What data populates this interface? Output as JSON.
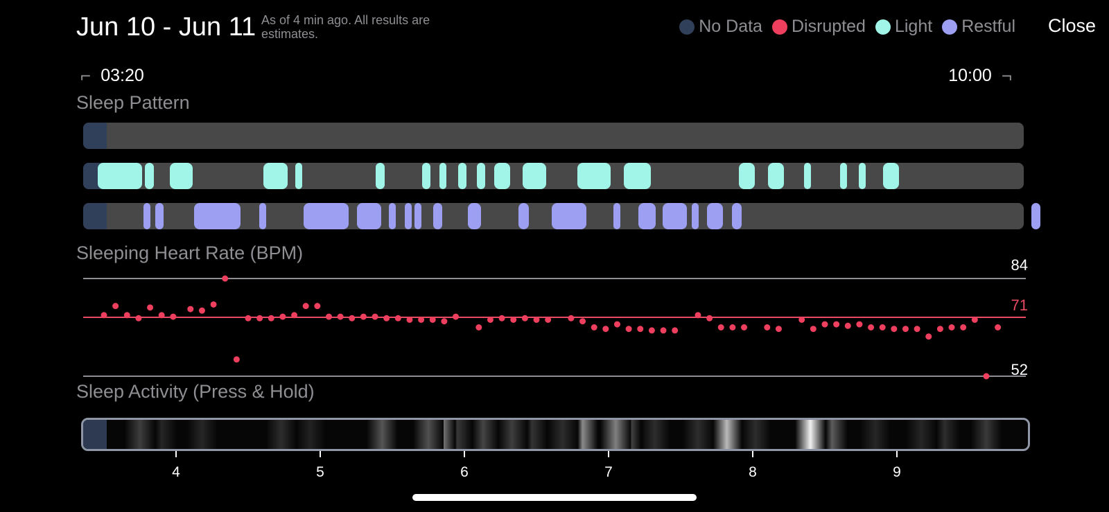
{
  "header": {
    "title": "Jun 10 - Jun 11",
    "subtitle": "As of 4 min ago. All results are estimates.",
    "close_label": "Close"
  },
  "legend": [
    {
      "label": "No Data",
      "color": "#31405a"
    },
    {
      "label": "Disrupted",
      "color": "#ef3f5f"
    },
    {
      "label": "Light",
      "color": "#a0f5e8"
    },
    {
      "label": "Restful",
      "color": "#9da0f2"
    }
  ],
  "time_range": {
    "start": "03:20",
    "end": "10:00"
  },
  "sleep_pattern": {
    "title": "Sleep Pattern",
    "range_hours": [
      3.333,
      10.0
    ],
    "nodata_until": 3.45,
    "light_segments": [
      [
        3.45,
        3.77
      ],
      [
        3.78,
        3.85
      ],
      [
        3.95,
        4.12
      ],
      [
        4.6,
        4.78
      ],
      [
        4.82,
        4.88
      ],
      [
        5.38,
        5.45
      ],
      [
        5.7,
        5.77
      ],
      [
        5.82,
        5.88
      ],
      [
        5.95,
        6.02
      ],
      [
        6.08,
        6.15
      ],
      [
        6.2,
        6.32
      ],
      [
        6.4,
        6.57
      ],
      [
        6.78,
        7.02
      ],
      [
        7.1,
        7.3
      ],
      [
        7.9,
        8.02
      ],
      [
        8.1,
        8.22
      ],
      [
        8.35,
        8.4
      ],
      [
        8.6,
        8.66
      ],
      [
        8.73,
        8.78
      ],
      [
        8.9,
        9.02
      ]
    ],
    "restful_segments": [
      [
        3.77,
        3.82
      ],
      [
        3.85,
        3.92
      ],
      [
        4.12,
        4.45
      ],
      [
        4.57,
        4.62
      ],
      [
        4.88,
        5.2
      ],
      [
        5.25,
        5.43
      ],
      [
        5.47,
        5.53
      ],
      [
        5.58,
        5.62
      ],
      [
        5.65,
        5.7
      ],
      [
        5.78,
        5.85
      ],
      [
        6.02,
        6.12
      ],
      [
        6.37,
        6.45
      ],
      [
        6.6,
        6.85
      ],
      [
        7.03,
        7.07
      ],
      [
        7.2,
        7.33
      ],
      [
        7.37,
        7.55
      ],
      [
        7.57,
        7.63
      ],
      [
        7.68,
        7.8
      ],
      [
        7.85,
        7.93
      ],
      [
        9.93,
        10.0
      ]
    ]
  },
  "heart_rate": {
    "title": "Sleeping Heart Rate (BPM)",
    "max": 84,
    "avg": 71,
    "min": 52,
    "max_label": "84",
    "avg_label": "71",
    "min_label": "52",
    "points": [
      [
        3.5,
        72
      ],
      [
        3.58,
        75
      ],
      [
        3.66,
        72
      ],
      [
        3.74,
        71
      ],
      [
        3.82,
        74.5
      ],
      [
        3.9,
        72
      ],
      [
        3.98,
        71.5
      ],
      [
        4.1,
        74
      ],
      [
        4.18,
        73.5
      ],
      [
        4.26,
        75.5
      ],
      [
        4.34,
        84
      ],
      [
        4.42,
        57.5
      ],
      [
        4.5,
        71
      ],
      [
        4.58,
        71
      ],
      [
        4.66,
        71
      ],
      [
        4.74,
        71.5
      ],
      [
        4.82,
        72
      ],
      [
        4.9,
        75
      ],
      [
        4.98,
        75
      ],
      [
        5.06,
        71.5
      ],
      [
        5.14,
        71.5
      ],
      [
        5.22,
        71
      ],
      [
        5.3,
        71.5
      ],
      [
        5.38,
        71.5
      ],
      [
        5.46,
        71
      ],
      [
        5.54,
        71
      ],
      [
        5.62,
        70.5
      ],
      [
        5.7,
        70.5
      ],
      [
        5.78,
        70.5
      ],
      [
        5.86,
        70
      ],
      [
        5.94,
        71.5
      ],
      [
        6.1,
        68
      ],
      [
        6.18,
        70.5
      ],
      [
        6.26,
        71
      ],
      [
        6.34,
        70.5
      ],
      [
        6.42,
        71
      ],
      [
        6.5,
        70.5
      ],
      [
        6.58,
        70.5
      ],
      [
        6.74,
        71
      ],
      [
        6.82,
        70
      ],
      [
        6.9,
        68
      ],
      [
        6.98,
        67.5
      ],
      [
        7.06,
        69
      ],
      [
        7.14,
        67.5
      ],
      [
        7.22,
        67.5
      ],
      [
        7.3,
        67
      ],
      [
        7.38,
        67
      ],
      [
        7.46,
        67
      ],
      [
        7.62,
        72
      ],
      [
        7.7,
        71
      ],
      [
        7.78,
        68
      ],
      [
        7.86,
        68
      ],
      [
        7.94,
        68
      ],
      [
        8.1,
        68
      ],
      [
        8.18,
        67.5
      ],
      [
        8.34,
        70.5
      ],
      [
        8.42,
        67.5
      ],
      [
        8.5,
        69
      ],
      [
        8.58,
        69
      ],
      [
        8.66,
        68.5
      ],
      [
        8.74,
        69
      ],
      [
        8.82,
        68
      ],
      [
        8.9,
        68
      ],
      [
        8.98,
        67.5
      ],
      [
        9.06,
        67.5
      ],
      [
        9.14,
        67.5
      ],
      [
        9.22,
        65
      ],
      [
        9.3,
        67.5
      ],
      [
        9.38,
        68
      ],
      [
        9.46,
        68
      ],
      [
        9.54,
        70.5
      ],
      [
        9.62,
        52
      ],
      [
        9.7,
        68
      ]
    ],
    "dot_color": "#ef3f5f",
    "avg_color": "#e84a63",
    "bound_color": "#8e8e93"
  },
  "activity": {
    "title": "Sleep Activity (Press & Hold)",
    "bands": [
      [
        3.75,
        0.22
      ],
      [
        3.9,
        0.12
      ],
      [
        4.18,
        0.12
      ],
      [
        4.73,
        0.15
      ],
      [
        4.93,
        0.1
      ],
      [
        5.43,
        0.32
      ],
      [
        5.75,
        0.3
      ],
      [
        5.83,
        0.45
      ],
      [
        5.95,
        0.2
      ],
      [
        6.13,
        0.25
      ],
      [
        6.33,
        0.22
      ],
      [
        6.47,
        0.18
      ],
      [
        6.68,
        0.15
      ],
      [
        6.82,
        0.55
      ],
      [
        7.05,
        0.5
      ],
      [
        7.12,
        0.25
      ],
      [
        7.32,
        0.15
      ],
      [
        7.62,
        0.15
      ],
      [
        7.82,
        0.75
      ],
      [
        8.02,
        0.15
      ],
      [
        8.4,
        0.98
      ],
      [
        8.55,
        0.35
      ],
      [
        8.85,
        0.12
      ],
      [
        9.17,
        0.12
      ],
      [
        9.33,
        0.15
      ],
      [
        9.62,
        0.2
      ]
    ],
    "axis_ticks": [
      "4",
      "5",
      "6",
      "7",
      "8",
      "9"
    ],
    "tick_values": [
      4,
      5,
      6,
      7,
      8,
      9
    ]
  }
}
